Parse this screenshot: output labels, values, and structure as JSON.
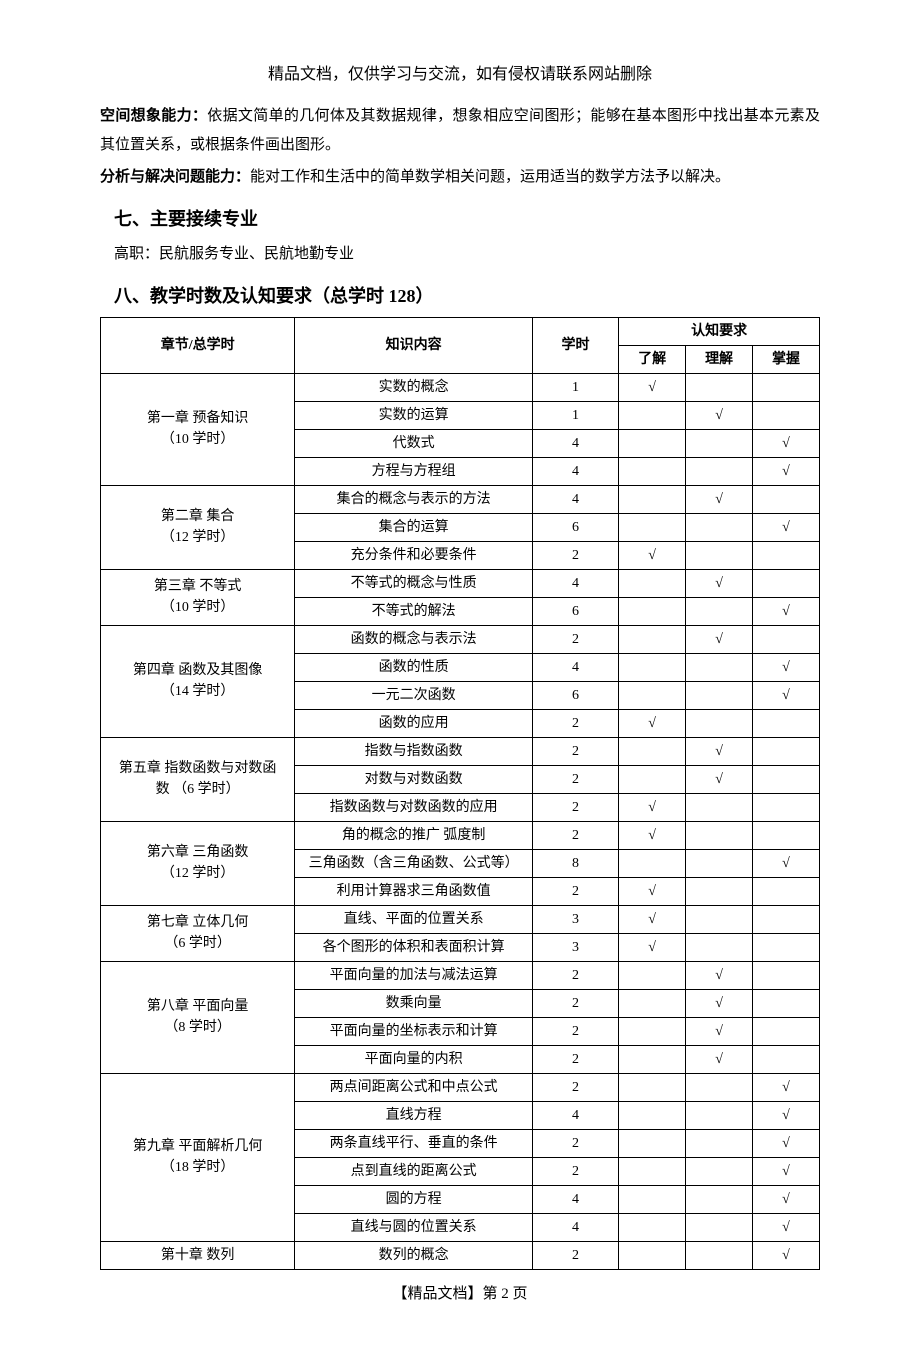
{
  "header_note": "精品文档，仅供学习与交流，如有侵权请联系网站删除",
  "para1_label": "空间想象能力：",
  "para1_text": "依据文简单的几何体及其数据规律，想象相应空间图形；能够在基本图形中找出基本元素及其位置关系，或根据条件画出图形。",
  "para2_label": "分析与解决问题能力：",
  "para2_text": "能对工作和生活中的简单数学相关问题，运用适当的数学方法予以解决。",
  "section7_title": "七、主要接续专业",
  "section7_text": "高职：民航服务专业、民航地勤专业",
  "section8_title": "八、教学时数及认知要求（总学时 128）",
  "table": {
    "th_chapter": "章节/总学时",
    "th_content": "知识内容",
    "th_hours": "学时",
    "th_req": "认知要求",
    "th_know": "了解",
    "th_understand": "理解",
    "th_master": "掌握",
    "check": "√",
    "chapters": {
      "c1_l1": "第一章 预备知识",
      "c1_l2": "（10 学时）",
      "c2_l1": "第二章 集合",
      "c2_l2": "（12 学时）",
      "c3_l1": "第三章 不等式",
      "c3_l2": "（10 学时）",
      "c4_l1": "第四章 函数及其图像",
      "c4_l2": "（14 学时）",
      "c5_l1": "第五章 指数函数与对数函",
      "c5_l2": "数 （6 学时）",
      "c6_l1": "第六章  三角函数",
      "c6_l2": "（12 学时）",
      "c7_l1": "第七章 立体几何",
      "c7_l2": "（6 学时）",
      "c8_l1": "第八章 平面向量",
      "c8_l2": "（8 学时）",
      "c9_l1": "第九章 平面解析几何",
      "c9_l2": "（18 学时）",
      "c10": "第十章 数列"
    },
    "rows": {
      "r1": {
        "content": "实数的概念",
        "hours": "1"
      },
      "r2": {
        "content": "实数的运算",
        "hours": "1"
      },
      "r3": {
        "content": "代数式",
        "hours": "4"
      },
      "r4": {
        "content": "方程与方程组",
        "hours": "4"
      },
      "r5": {
        "content": "集合的概念与表示的方法",
        "hours": "4"
      },
      "r6": {
        "content": "集合的运算",
        "hours": "6"
      },
      "r7": {
        "content": "充分条件和必要条件",
        "hours": "2"
      },
      "r8": {
        "content": "不等式的概念与性质",
        "hours": "4"
      },
      "r9": {
        "content": "不等式的解法",
        "hours": "6"
      },
      "r10": {
        "content": "函数的概念与表示法",
        "hours": "2"
      },
      "r11": {
        "content": "函数的性质",
        "hours": "4"
      },
      "r12": {
        "content": "一元二次函数",
        "hours": "6"
      },
      "r13": {
        "content": "函数的应用",
        "hours": "2"
      },
      "r14": {
        "content": "指数与指数函数",
        "hours": "2"
      },
      "r15": {
        "content": "对数与对数函数",
        "hours": "2"
      },
      "r16": {
        "content": "指数函数与对数函数的应用",
        "hours": "2"
      },
      "r17": {
        "content": "角的概念的推广 弧度制",
        "hours": "2"
      },
      "r18": {
        "content": "三角函数（含三角函数、公式等）",
        "hours": "8"
      },
      "r19": {
        "content": "利用计算器求三角函数值",
        "hours": "2"
      },
      "r20": {
        "content": "直线、平面的位置关系",
        "hours": "3"
      },
      "r21": {
        "content": "各个图形的体积和表面积计算",
        "hours": "3"
      },
      "r22": {
        "content": "平面向量的加法与减法运算",
        "hours": "2"
      },
      "r23": {
        "content": "数乘向量",
        "hours": "2"
      },
      "r24": {
        "content": "平面向量的坐标表示和计算",
        "hours": "2"
      },
      "r25": {
        "content": "平面向量的内积",
        "hours": "2"
      },
      "r26": {
        "content": "两点间距离公式和中点公式",
        "hours": "2"
      },
      "r27": {
        "content": "直线方程",
        "hours": "4"
      },
      "r28": {
        "content": "两条直线平行、垂直的条件",
        "hours": "2"
      },
      "r29": {
        "content": "点到直线的距离公式",
        "hours": "2"
      },
      "r30": {
        "content": "圆的方程",
        "hours": "4"
      },
      "r31": {
        "content": "直线与圆的位置关系",
        "hours": "4"
      },
      "r32": {
        "content": "数列的概念",
        "hours": "2"
      }
    }
  },
  "footer": "【精品文档】第 2 页"
}
